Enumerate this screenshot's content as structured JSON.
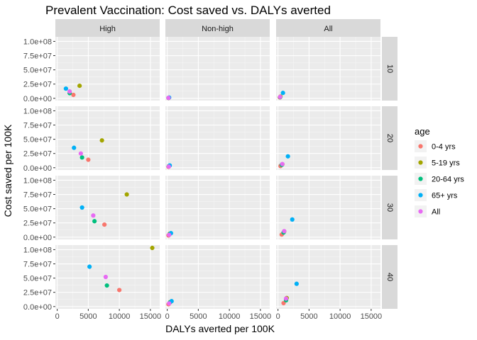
{
  "chart_data": {
    "type": "scatter",
    "title": "Prevalent Vaccination: Cost saved vs. DALYs averted",
    "xlabel": "DALYs averted per 100K",
    "ylabel": "Cost saved per 100K",
    "xlim": [
      -300,
      16500
    ],
    "ylim": [
      -4000000,
      108000000
    ],
    "x_ticks": [
      0,
      5000,
      10000,
      15000
    ],
    "x_tick_labels": [
      "0",
      "5000",
      "10000",
      "15000"
    ],
    "y_ticks": [
      0,
      25000000,
      50000000,
      75000000,
      100000000
    ],
    "y_tick_labels": [
      "0.0e+00",
      "2.5e+07",
      "5.0e+07",
      "7.5e+07",
      "1.0e+08"
    ],
    "grid": true,
    "legend_position": "right",
    "legend_title": "age",
    "series": [
      {
        "name": "0-4 yrs",
        "color": "#F8766D"
      },
      {
        "name": "5-19 yrs",
        "color": "#A3A500"
      },
      {
        "name": "20-64 yrs",
        "color": "#00BF7D"
      },
      {
        "name": "65+ yrs",
        "color": "#00B0F6"
      },
      {
        "name": "All",
        "color": "#E76BF3"
      }
    ],
    "facet_columns": [
      "High",
      "Non-high",
      "All"
    ],
    "facet_rows": [
      "10",
      "20",
      "30",
      "40"
    ],
    "points": [
      {
        "col": 0,
        "row": 0,
        "series": 0,
        "x": 2600,
        "y": 6000000
      },
      {
        "col": 0,
        "row": 0,
        "series": 1,
        "x": 3600,
        "y": 22000000
      },
      {
        "col": 0,
        "row": 0,
        "series": 2,
        "x": 2000,
        "y": 9000000
      },
      {
        "col": 0,
        "row": 0,
        "series": 3,
        "x": 1400,
        "y": 17000000
      },
      {
        "col": 0,
        "row": 0,
        "series": 4,
        "x": 2000,
        "y": 12000000
      },
      {
        "col": 1,
        "row": 0,
        "series": 0,
        "x": 200,
        "y": 500000
      },
      {
        "col": 1,
        "row": 0,
        "series": 1,
        "x": 250,
        "y": 1000000
      },
      {
        "col": 1,
        "row": 0,
        "series": 2,
        "x": 200,
        "y": 700000
      },
      {
        "col": 1,
        "row": 0,
        "series": 3,
        "x": 300,
        "y": 1300000
      },
      {
        "col": 1,
        "row": 0,
        "series": 4,
        "x": 200,
        "y": 800000
      },
      {
        "col": 2,
        "row": 0,
        "series": 0,
        "x": 300,
        "y": 1500000
      },
      {
        "col": 2,
        "row": 0,
        "series": 1,
        "x": 400,
        "y": 3000000
      },
      {
        "col": 2,
        "row": 0,
        "series": 2,
        "x": 350,
        "y": 2000000
      },
      {
        "col": 2,
        "row": 0,
        "series": 3,
        "x": 800,
        "y": 9500000
      },
      {
        "col": 2,
        "row": 0,
        "series": 4,
        "x": 350,
        "y": 2500000
      },
      {
        "col": 0,
        "row": 1,
        "series": 0,
        "x": 5000,
        "y": 14000000
      },
      {
        "col": 0,
        "row": 1,
        "series": 1,
        "x": 7200,
        "y": 48000000
      },
      {
        "col": 0,
        "row": 1,
        "series": 2,
        "x": 4000,
        "y": 18000000
      },
      {
        "col": 0,
        "row": 1,
        "series": 3,
        "x": 2700,
        "y": 35000000
      },
      {
        "col": 0,
        "row": 1,
        "series": 4,
        "x": 3800,
        "y": 25000000
      },
      {
        "col": 1,
        "row": 1,
        "series": 0,
        "x": 200,
        "y": 1500000
      },
      {
        "col": 1,
        "row": 1,
        "series": 1,
        "x": 300,
        "y": 3000000
      },
      {
        "col": 1,
        "row": 1,
        "series": 2,
        "x": 250,
        "y": 2500000
      },
      {
        "col": 1,
        "row": 1,
        "series": 3,
        "x": 400,
        "y": 4000000
      },
      {
        "col": 1,
        "row": 1,
        "series": 4,
        "x": 250,
        "y": 2000000
      },
      {
        "col": 2,
        "row": 1,
        "series": 0,
        "x": 400,
        "y": 3000000
      },
      {
        "col": 2,
        "row": 1,
        "series": 1,
        "x": 700,
        "y": 6000000
      },
      {
        "col": 2,
        "row": 1,
        "series": 2,
        "x": 600,
        "y": 5000000
      },
      {
        "col": 2,
        "row": 1,
        "series": 3,
        "x": 1600,
        "y": 20000000
      },
      {
        "col": 2,
        "row": 1,
        "series": 4,
        "x": 700,
        "y": 6500000
      },
      {
        "col": 0,
        "row": 2,
        "series": 0,
        "x": 7600,
        "y": 22000000
      },
      {
        "col": 0,
        "row": 2,
        "series": 1,
        "x": 11200,
        "y": 75000000
      },
      {
        "col": 0,
        "row": 2,
        "series": 2,
        "x": 6000,
        "y": 28000000
      },
      {
        "col": 0,
        "row": 2,
        "series": 3,
        "x": 4000,
        "y": 52000000
      },
      {
        "col": 0,
        "row": 2,
        "series": 4,
        "x": 5800,
        "y": 38000000
      },
      {
        "col": 1,
        "row": 2,
        "series": 0,
        "x": 200,
        "y": 3000000
      },
      {
        "col": 1,
        "row": 2,
        "series": 1,
        "x": 400,
        "y": 6000000
      },
      {
        "col": 1,
        "row": 2,
        "series": 2,
        "x": 350,
        "y": 5000000
      },
      {
        "col": 1,
        "row": 2,
        "series": 3,
        "x": 600,
        "y": 7000000
      },
      {
        "col": 1,
        "row": 2,
        "series": 4,
        "x": 300,
        "y": 4000000
      },
      {
        "col": 2,
        "row": 2,
        "series": 0,
        "x": 600,
        "y": 4500000
      },
      {
        "col": 2,
        "row": 2,
        "series": 1,
        "x": 1000,
        "y": 10000000
      },
      {
        "col": 2,
        "row": 2,
        "series": 2,
        "x": 900,
        "y": 8000000
      },
      {
        "col": 2,
        "row": 2,
        "series": 3,
        "x": 2300,
        "y": 31000000
      },
      {
        "col": 2,
        "row": 2,
        "series": 4,
        "x": 1000,
        "y": 10500000
      },
      {
        "col": 0,
        "row": 3,
        "series": 0,
        "x": 10000,
        "y": 29000000
      },
      {
        "col": 0,
        "row": 3,
        "series": 1,
        "x": 15300,
        "y": 103000000
      },
      {
        "col": 0,
        "row": 3,
        "series": 2,
        "x": 8000,
        "y": 37000000
      },
      {
        "col": 0,
        "row": 3,
        "series": 3,
        "x": 5200,
        "y": 70000000
      },
      {
        "col": 0,
        "row": 3,
        "series": 4,
        "x": 7800,
        "y": 52000000
      },
      {
        "col": 1,
        "row": 3,
        "series": 0,
        "x": 200,
        "y": 4000000
      },
      {
        "col": 1,
        "row": 3,
        "series": 1,
        "x": 500,
        "y": 8000000
      },
      {
        "col": 1,
        "row": 3,
        "series": 2,
        "x": 400,
        "y": 7000000
      },
      {
        "col": 1,
        "row": 3,
        "series": 3,
        "x": 700,
        "y": 9500000
      },
      {
        "col": 1,
        "row": 3,
        "series": 4,
        "x": 300,
        "y": 5500000
      },
      {
        "col": 2,
        "row": 3,
        "series": 0,
        "x": 900,
        "y": 6000000
      },
      {
        "col": 2,
        "row": 3,
        "series": 1,
        "x": 1400,
        "y": 15000000
      },
      {
        "col": 2,
        "row": 3,
        "series": 2,
        "x": 1300,
        "y": 11000000
      },
      {
        "col": 2,
        "row": 3,
        "series": 3,
        "x": 3000,
        "y": 40000000
      },
      {
        "col": 2,
        "row": 3,
        "series": 4,
        "x": 1300,
        "y": 14000000
      }
    ]
  }
}
